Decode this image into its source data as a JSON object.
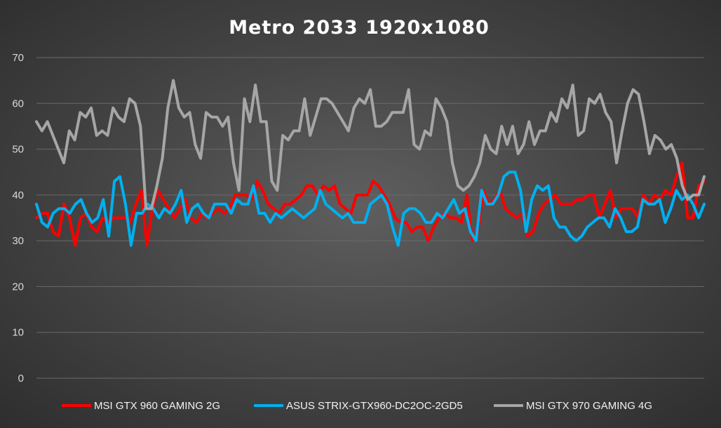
{
  "chart_data": {
    "type": "line",
    "title": "Metro 2033 1920x1080",
    "xlabel": "",
    "ylabel": "",
    "ylim": [
      0,
      70
    ],
    "yticks": [
      0,
      10,
      20,
      30,
      40,
      50,
      60,
      70
    ],
    "grid": true,
    "legend": "bottom",
    "series": [
      {
        "name": "MSI GTX 960 GAMING 2G",
        "color": "#ff0000",
        "values": [
          35,
          36,
          36,
          32,
          31,
          38,
          35,
          29,
          35,
          36,
          33,
          32,
          35,
          34,
          35,
          35,
          35,
          34,
          38,
          41,
          29,
          37,
          41,
          39,
          37,
          35,
          37,
          39,
          35,
          34,
          36,
          35,
          36,
          37,
          36,
          37,
          40,
          40,
          40,
          39,
          43,
          41,
          38,
          37,
          36,
          38,
          38,
          39,
          40,
          42,
          42,
          40,
          42,
          41,
          42,
          38,
          37,
          36,
          40,
          40,
          40,
          43,
          42,
          40,
          38,
          35,
          34,
          34,
          32,
          33,
          33,
          30,
          33,
          35,
          36,
          35,
          35,
          34,
          40,
          30,
          32,
          41,
          38,
          39,
          41,
          37,
          36,
          35,
          36,
          31,
          32,
          36,
          38,
          39,
          40,
          38,
          38,
          38,
          39,
          39,
          40,
          40,
          35,
          38,
          41,
          35,
          37,
          37,
          37,
          35,
          40,
          38,
          40,
          39,
          41,
          40,
          44,
          47,
          35,
          35,
          42,
          43
        ]
      },
      {
        "name": "ASUS STRIX-GTX960-DC2OC-2GD5",
        "color": "#00b0f0",
        "values": [
          38,
          34,
          33,
          36,
          37,
          37,
          36,
          38,
          39,
          36,
          34,
          35,
          39,
          31,
          43,
          44,
          38,
          29,
          36,
          36,
          38,
          37,
          35,
          37,
          36,
          38,
          41,
          34,
          37,
          38,
          36,
          35,
          38,
          38,
          38,
          36,
          39,
          38,
          38,
          42,
          36,
          36,
          34,
          36,
          35,
          36,
          37,
          36,
          35,
          36,
          37,
          41,
          38,
          37,
          36,
          35,
          36,
          34,
          34,
          34,
          38,
          39,
          40,
          38,
          33,
          29,
          36,
          37,
          37,
          36,
          34,
          34,
          36,
          35,
          37,
          39,
          36,
          37,
          32,
          30,
          41,
          38,
          38,
          40,
          44,
          45,
          45,
          41,
          32,
          39,
          42,
          41,
          42,
          35,
          33,
          33,
          31,
          30,
          31,
          33,
          34,
          35,
          35,
          33,
          37,
          35,
          32,
          32,
          33,
          39,
          38,
          38,
          39,
          34,
          37,
          41,
          39,
          40,
          38,
          35,
          38
        ]
      },
      {
        "name": "MSI GTX 970 GAMING 4G",
        "color": "#a6a6a6",
        "values": [
          56,
          54,
          56,
          53,
          50,
          47,
          54,
          52,
          58,
          57,
          59,
          53,
          54,
          53,
          59,
          57,
          56,
          61,
          60,
          55,
          37,
          37,
          42,
          48,
          59,
          65,
          59,
          57,
          58,
          51,
          48,
          58,
          57,
          57,
          55,
          57,
          47,
          41,
          61,
          56,
          64,
          56,
          56,
          43,
          41,
          53,
          52,
          54,
          54,
          61,
          53,
          57,
          61,
          61,
          60,
          58,
          56,
          54,
          59,
          61,
          60,
          63,
          55,
          55,
          56,
          58,
          58,
          58,
          63,
          51,
          50,
          54,
          53,
          61,
          59,
          56,
          47,
          42,
          41,
          42,
          44,
          47,
          53,
          50,
          49,
          55,
          51,
          55,
          49,
          51,
          56,
          51,
          54,
          54,
          58,
          56,
          61,
          59,
          64,
          53,
          54,
          61,
          60,
          62,
          58,
          56,
          47,
          54,
          60,
          63,
          62,
          56,
          49,
          53,
          52,
          50,
          51,
          48,
          42,
          39,
          40,
          40,
          44
        ]
      }
    ]
  }
}
